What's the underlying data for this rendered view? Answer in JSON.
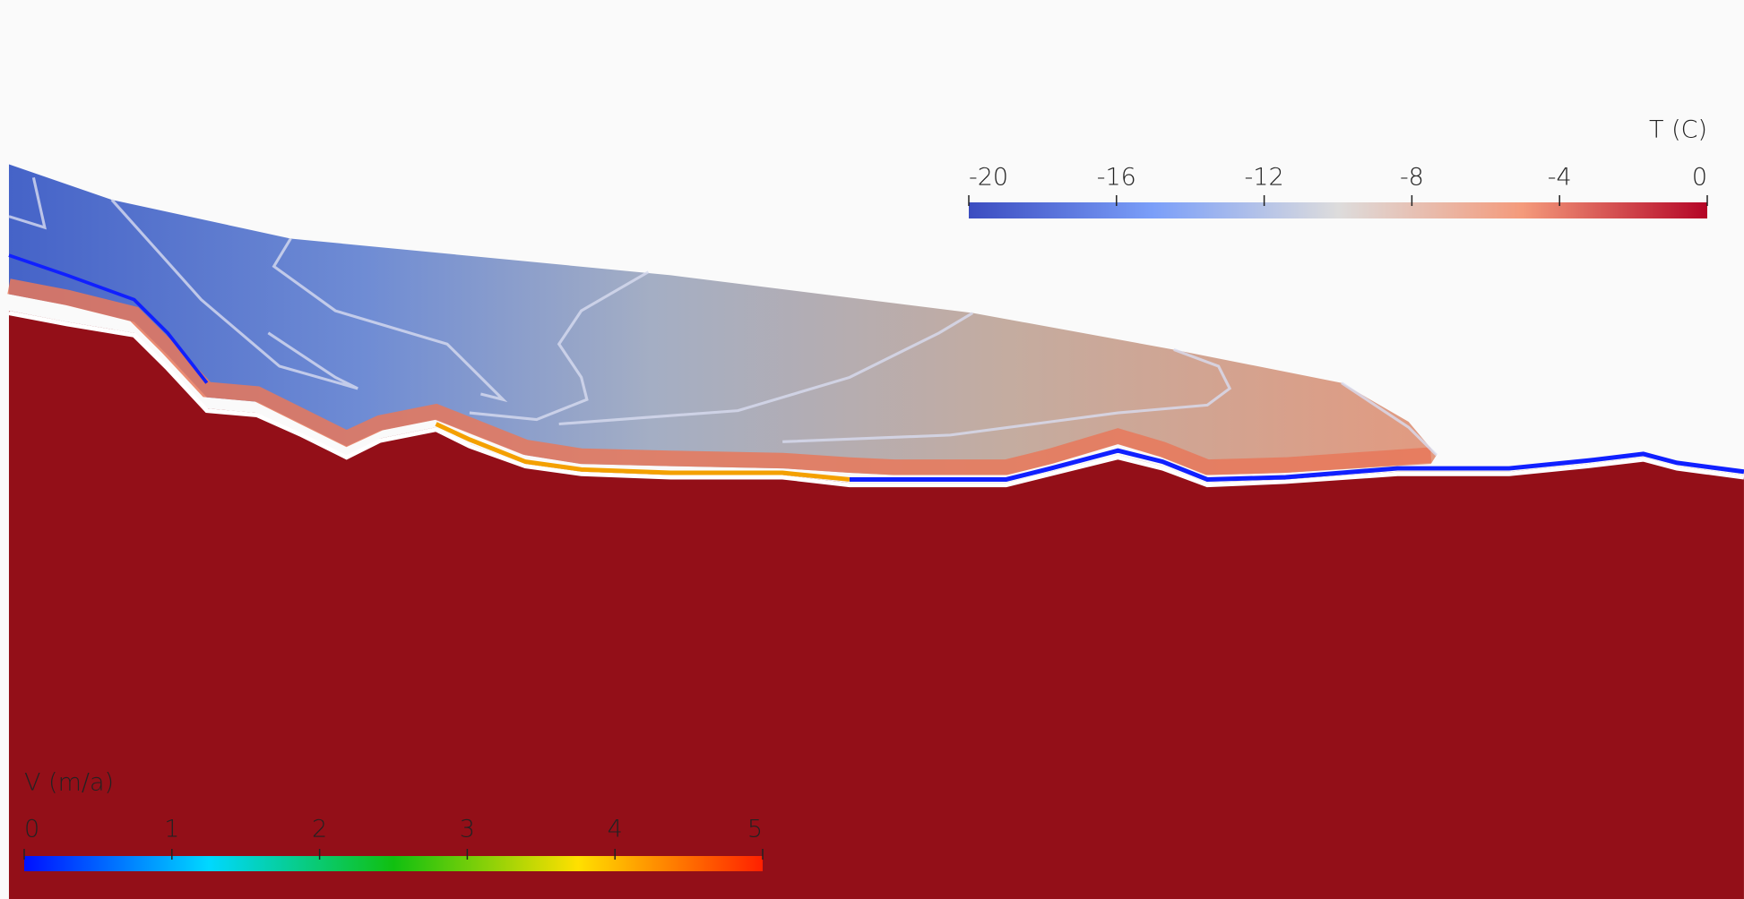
{
  "temperature_legend": {
    "title": "T (C)",
    "range": [
      -20,
      0
    ],
    "ticks": [
      -20,
      -16,
      -12,
      -8,
      -4,
      0
    ]
  },
  "velocity_legend": {
    "title": "V (m/a)",
    "range": [
      0,
      5
    ],
    "ticks": [
      0,
      1,
      2,
      3,
      4,
      5
    ]
  }
}
